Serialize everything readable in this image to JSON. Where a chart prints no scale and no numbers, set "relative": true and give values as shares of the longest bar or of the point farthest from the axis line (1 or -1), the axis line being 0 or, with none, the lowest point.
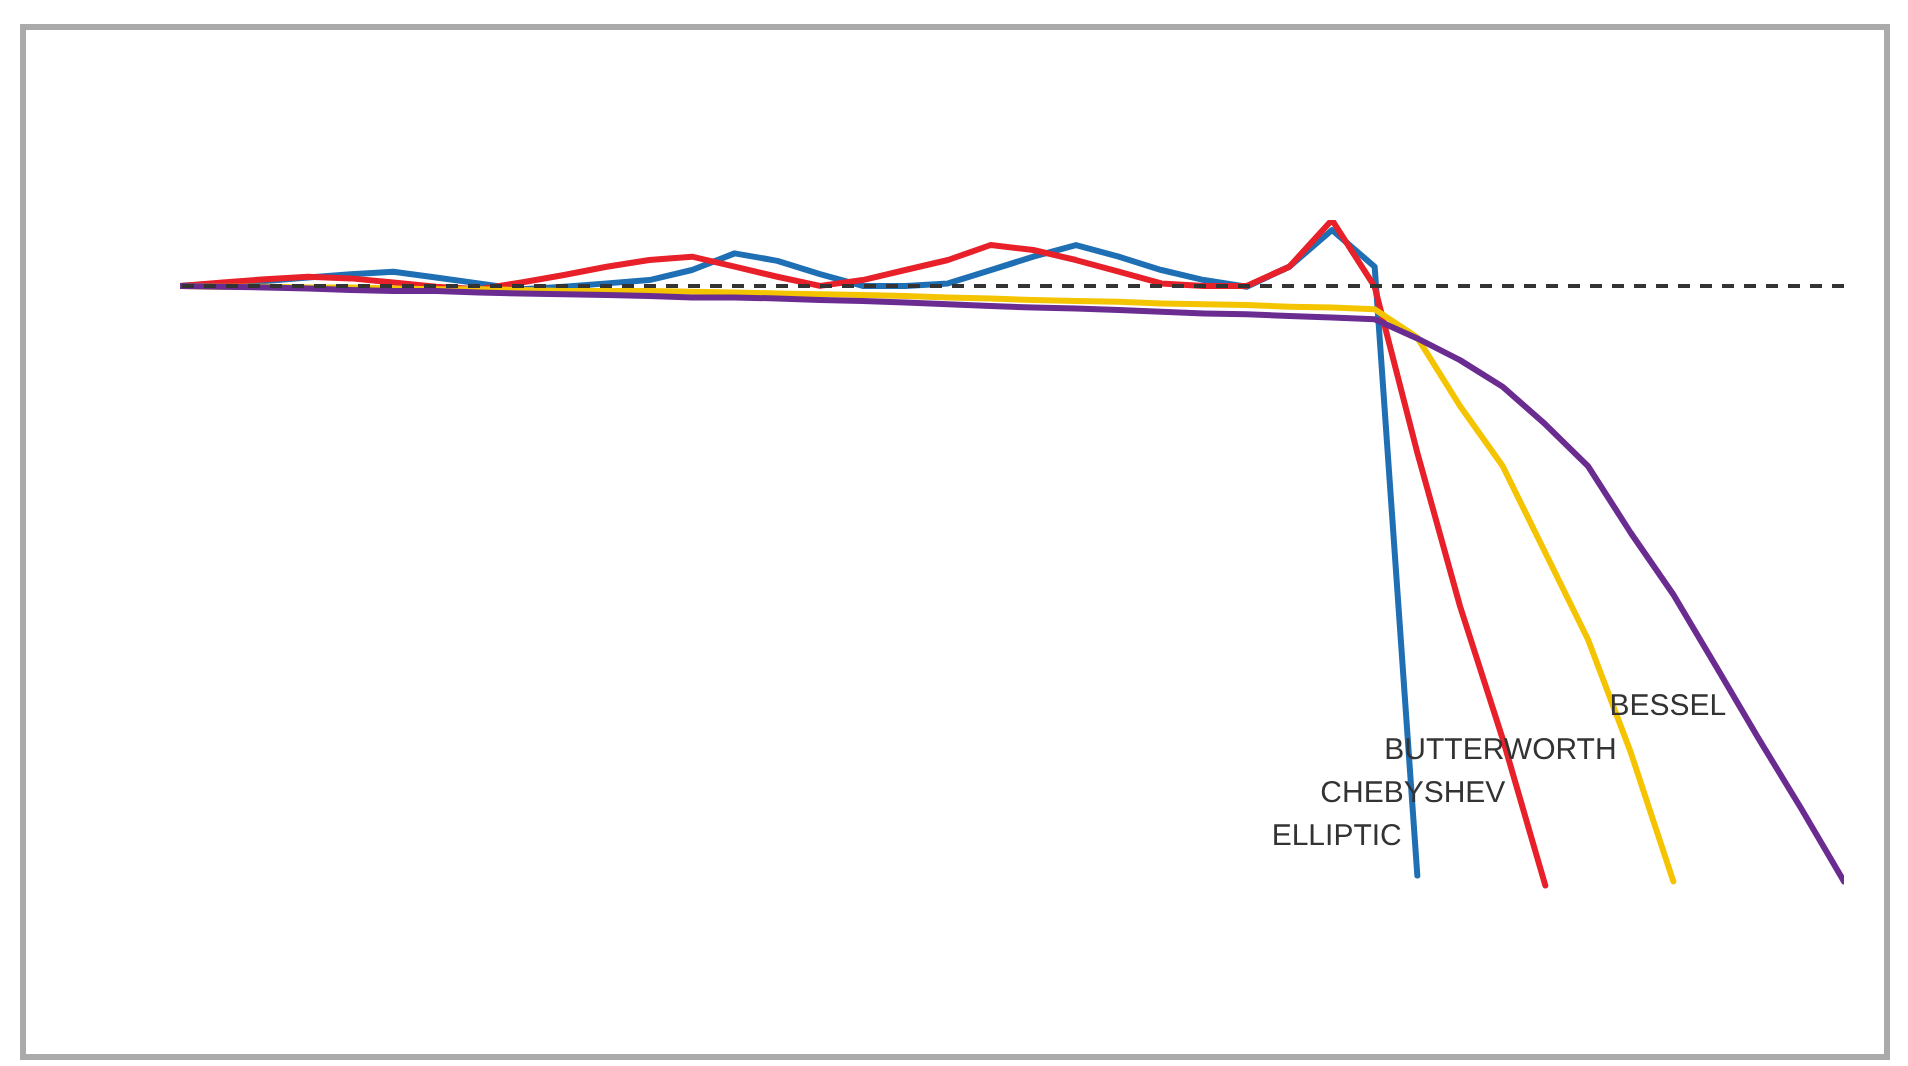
{
  "chart_data": {
    "type": "line",
    "relative": true,
    "grid": false,
    "categories": [
      null,
      null,
      null,
      null,
      null,
      null,
      null,
      null,
      null,
      null,
      null,
      null,
      null,
      null,
      null,
      null,
      null,
      null,
      null,
      null,
      null,
      null,
      null,
      null,
      null,
      null,
      null,
      null,
      null,
      null,
      null,
      null,
      null,
      null,
      null,
      null,
      null,
      null,
      null,
      null
    ],
    "series": [
      {
        "name": "ELLIPTIC",
        "color": "#1f6fb5",
        "values": [
          0.921,
          0.924,
          0.927,
          0.931,
          0.935,
          0.938,
          0.931,
          0.924,
          0.917,
          0.92,
          0.924,
          0.928,
          0.94,
          0.96,
          0.951,
          0.935,
          0.921,
          0.921,
          0.924,
          0.94,
          0.956,
          0.97,
          0.956,
          0.94,
          0.928,
          0.92,
          0.944,
          0.988,
          0.944,
          0.214,
          null,
          null,
          null,
          null,
          null,
          null,
          null,
          null,
          null,
          null
        ]
      },
      {
        "name": "CHEBYSHEV",
        "color": "#e8202a",
        "values": [
          0.921,
          0.925,
          0.929,
          0.932,
          0.93,
          0.925,
          0.92,
          0.917,
          0.925,
          0.934,
          0.944,
          0.952,
          0.956,
          0.944,
          0.932,
          0.921,
          0.928,
          0.94,
          0.952,
          0.97,
          0.964,
          0.952,
          0.938,
          0.924,
          0.921,
          0.921,
          0.944,
          1,
          0.92,
          0.721,
          0.537,
          0.378,
          0.202,
          null,
          null,
          null,
          null,
          null,
          null,
          null
        ]
      },
      {
        "name": "BUTTERWORTH",
        "color": "#f5c400",
        "values": [
          0.921,
          0.92,
          0.92,
          0.919,
          0.919,
          0.918,
          0.917,
          0.917,
          0.916,
          0.915,
          0.915,
          0.915,
          0.914,
          0.913,
          0.912,
          0.911,
          0.91,
          0.909,
          0.907,
          0.906,
          0.904,
          0.903,
          0.902,
          0.9,
          0.899,
          0.898,
          0.896,
          0.895,
          0.893,
          0.859,
          0.777,
          0.705,
          0.601,
          0.497,
          0.362,
          0.207,
          null,
          null,
          null,
          null
        ]
      },
      {
        "name": "BESSEL",
        "color": "#6a2c91",
        "values": [
          0.921,
          0.92,
          0.919,
          0.918,
          0.916,
          0.915,
          0.915,
          0.913,
          0.912,
          0.911,
          0.91,
          0.909,
          0.907,
          0.907,
          0.906,
          0.904,
          0.903,
          0.901,
          0.899,
          0.897,
          0.895,
          0.894,
          0.892,
          0.89,
          0.888,
          0.887,
          0.885,
          0.883,
          0.881,
          0.858,
          0.832,
          0.8,
          0.755,
          0.705,
          0.625,
          0.551,
          0.465,
          0.378,
          0.294,
          0.207
        ]
      }
    ],
    "ref_lines": [
      {
        "axis": "y",
        "value": 0.921,
        "color": "#333333",
        "line_style": "dashed"
      }
    ]
  }
}
